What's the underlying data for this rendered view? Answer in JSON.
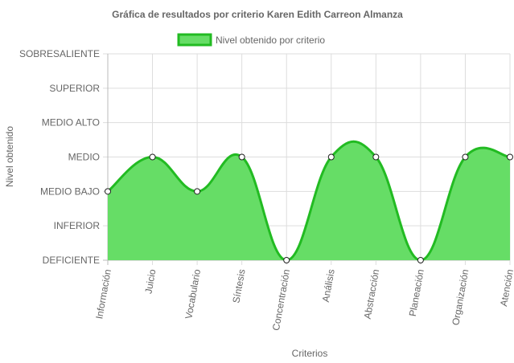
{
  "chart_data": {
    "type": "area",
    "title": "Gráfica de resultados por criterio Karen Edith Carreon Almanza",
    "xlabel": "Criterios",
    "ylabel": "Nivel obtenido",
    "y_levels": [
      "DEFICIENTE",
      "INFERIOR",
      "MEDIO BAJO",
      "MEDIO",
      "MEDIO ALTO",
      "SUPERIOR",
      "SOBRESALIENTE"
    ],
    "ylim": [
      0,
      6
    ],
    "categories": [
      "Información",
      "Juicio",
      "Vocabulario",
      "Síntesis",
      "Concentración",
      "Análisis",
      "Abstracción",
      "Planeación",
      "Organización",
      "Atención"
    ],
    "series": [
      {
        "name": "Nivel obtenido por criterio",
        "values": [
          2,
          3,
          2,
          3,
          0,
          3,
          3,
          0,
          3,
          3
        ],
        "fill_color": "#66dd66",
        "line_color": "#22bb22"
      }
    ],
    "legend_position": "top",
    "grid": true,
    "smooth": true
  }
}
